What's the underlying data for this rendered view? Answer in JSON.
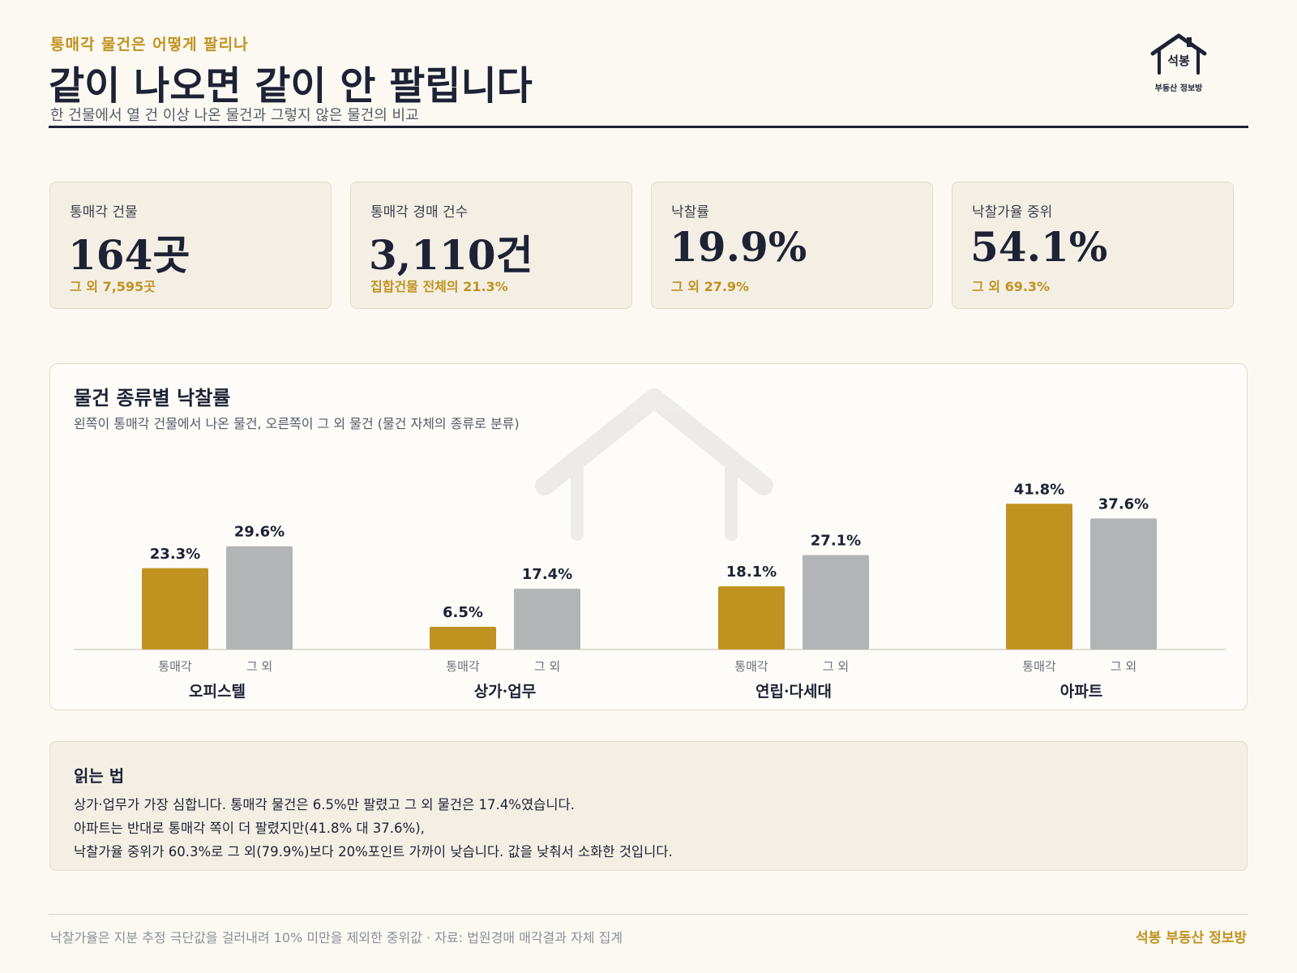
{
  "header": {
    "kicker": "통매각 물건은 어떻게 팔리나",
    "title": "같이 나오면 같이 안 팔립니다",
    "subtitle": "한 건물에서 열 건 이상 나온 물건과 그렇지 않은 물건의 비교"
  },
  "logo": {
    "name": "석봉",
    "sub": "부동산 정보방"
  },
  "kpis": [
    {
      "label": "통매각 건물",
      "value": "164곳",
      "note": "그 외 7,595곳"
    },
    {
      "label": "통매각 경매 건수",
      "value": "3,110건",
      "note": "집합건물 전체의 21.3%"
    },
    {
      "label": "낙찰률",
      "value": "19.9%",
      "note": "그 외 27.9%"
    },
    {
      "label": "낙찰가율 중위",
      "value": "54.1%",
      "note": "그 외 69.3%"
    }
  ],
  "colors": {
    "accent": "#c0921f",
    "other": "#b3b4b6",
    "ink": "#1d2235"
  },
  "chart_data": {
    "type": "bar",
    "title": "물건 종류별 낙찰률",
    "subtitle": "왼쪽이 통매각 건물에서 나온 물건, 오른쪽이 그 외 물건 (물건 자체의 종류로 분류)",
    "categories": [
      "오피스텔",
      "상가·업무",
      "연립·다세대",
      "아파트"
    ],
    "series": [
      {
        "name": "통매각",
        "values": [
          23.3,
          6.5,
          18.1,
          41.8
        ],
        "labels": [
          "23.3%",
          "6.5%",
          "18.1%",
          "41.8%"
        ]
      },
      {
        "name": "그 외",
        "values": [
          29.6,
          17.4,
          27.1,
          37.6
        ],
        "labels": [
          "29.6%",
          "17.4%",
          "27.1%",
          "37.6%"
        ]
      }
    ],
    "ylim": [
      0,
      50
    ],
    "grid": false,
    "unit": "%"
  },
  "reading": {
    "title": "읽는 법",
    "lines": [
      "상가·업무가 가장 심합니다. 통매각 물건은 6.5%만 팔렸고 그 외 물건은 17.4%였습니다.",
      "아파트는 반대로 통매각 쪽이 더 팔렸지만(41.8% 대 37.6%),",
      "낙찰가율 중위가 60.3%로 그 외(79.9%)보다 20%포인트 가까이 낮습니다. 값을 낮춰서 소화한 것입니다."
    ]
  },
  "footer": {
    "note": "낙찰가율은 지분 추정 극단값을 걸러내려 10% 미만을 제외한 중위값 · 자료: 법원경매 매각결과 자체 집계",
    "brand": "석봉 부동산 정보방"
  }
}
